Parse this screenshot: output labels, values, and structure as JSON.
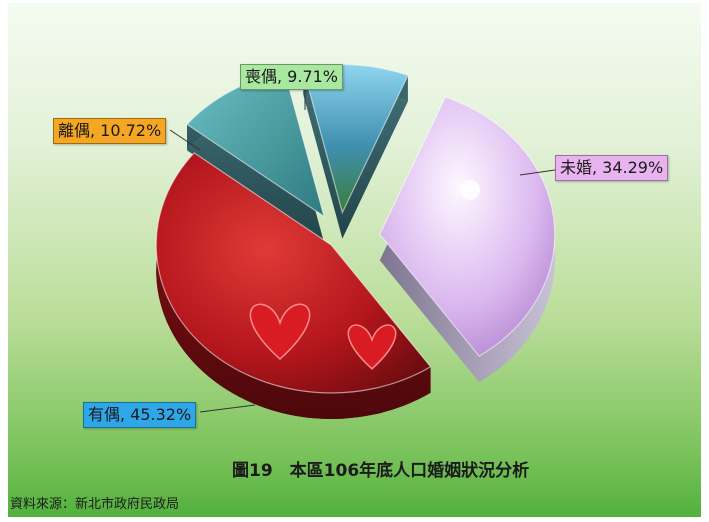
{
  "chart_data": {
    "type": "pie",
    "title": "圖19　本區106年底人口婚姻狀況分析",
    "source": "資料來源：新北市政府民政局",
    "slices": [
      {
        "label": "未婚, 34.29%",
        "value": 34.29,
        "color": "#d8b4ec"
      },
      {
        "label": "有偶, 45.32%",
        "value": 45.32,
        "color": "#b3161c"
      },
      {
        "label": "離偶, 10.72%",
        "value": 10.72,
        "color": "#3e8f93"
      },
      {
        "label": "喪偶, 9.71%",
        "value": 9.71,
        "color": "#3f8fb0"
      }
    ]
  }
}
